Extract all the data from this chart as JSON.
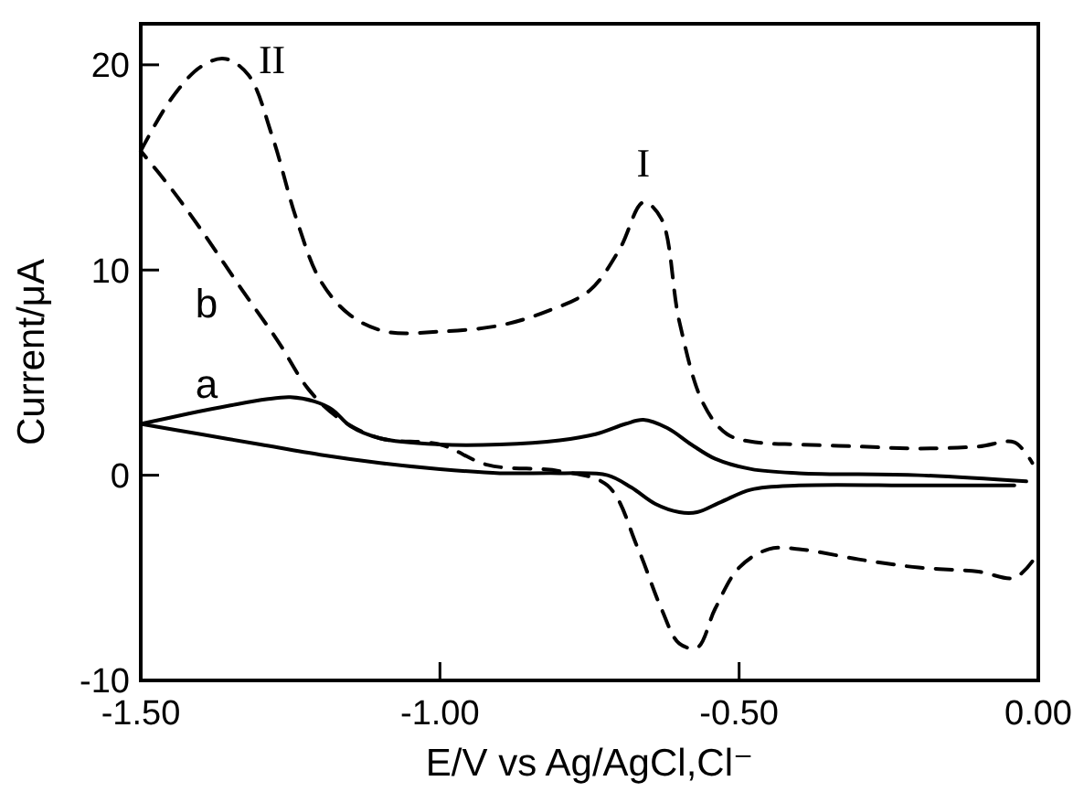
{
  "chart_data": {
    "type": "line",
    "xlabel": "E/V vs Ag/AgCl,Cl⁻",
    "ylabel": "Current/μA",
    "xlim": [
      -1.5,
      0
    ],
    "ylim": [
      -10,
      22
    ],
    "xticks": [
      {
        "value": -1.5,
        "label": "-1.50"
      },
      {
        "value": -1,
        "label": "-1.00"
      },
      {
        "value": -0.5,
        "label": "-0.50"
      },
      {
        "value": 0,
        "label": "0.00"
      }
    ],
    "yticks": [
      -10,
      0,
      10,
      20
    ],
    "grid": false,
    "marker": "none",
    "series": [
      {
        "color": "#000000",
        "line_style": "solid",
        "x": [
          -1.5,
          -1.42,
          -1.35,
          -1.29,
          -1.25,
          -1.21,
          -1.18,
          -1.15,
          -1.1,
          -1.0,
          -0.9,
          -0.8,
          -0.74,
          -0.69,
          -0.66,
          -0.62,
          -0.58,
          -0.54,
          -0.48,
          -0.4,
          -0.2,
          -0.02
        ],
        "values": [
          2.5,
          3.0,
          3.4,
          3.7,
          3.8,
          3.6,
          3.2,
          2.4,
          1.8,
          1.5,
          1.5,
          1.7,
          2.0,
          2.5,
          2.7,
          2.3,
          1.5,
          0.8,
          0.3,
          0.1,
          0.0,
          -0.3
        ]
      },
      {
        "color": "#000000",
        "line_style": "solid",
        "x": [
          -0.04,
          -0.2,
          -0.4,
          -0.48,
          -0.53,
          -0.57,
          -0.6,
          -0.64,
          -0.68,
          -0.72,
          -0.8,
          -0.9,
          -1.0,
          -1.1,
          -1.2,
          -1.3,
          -1.4,
          -1.5
        ],
        "values": [
          -0.5,
          -0.5,
          -0.5,
          -0.7,
          -1.3,
          -1.8,
          -1.8,
          -1.4,
          -0.6,
          0.0,
          0.1,
          0.1,
          0.3,
          0.6,
          1.0,
          1.5,
          2.0,
          2.5
        ]
      },
      {
        "color": "#000000",
        "line_style": "dashed",
        "x": [
          -1.5,
          -1.45,
          -1.4,
          -1.36,
          -1.32,
          -1.28,
          -1.24,
          -1.2,
          -1.15,
          -1.09,
          -1.0,
          -0.9,
          -0.82,
          -0.75,
          -0.7,
          -0.66,
          -0.63,
          -0.6,
          -0.56,
          -0.52,
          -0.47,
          -0.4,
          -0.3,
          -0.2,
          -0.1,
          -0.04,
          -0.01
        ],
        "values": [
          15.8,
          18.3,
          19.9,
          20.3,
          19.5,
          16.5,
          12.5,
          9.5,
          7.8,
          7.0,
          7.0,
          7.3,
          8.0,
          9.0,
          11.0,
          13.3,
          12.5,
          7.5,
          3.5,
          2.0,
          1.6,
          1.5,
          1.4,
          1.3,
          1.4,
          1.6,
          0.6
        ]
      },
      {
        "color": "#000000",
        "line_style": "dashed",
        "x": [
          -0.01,
          -0.04,
          -0.1,
          -0.2,
          -0.3,
          -0.4,
          -0.45,
          -0.5,
          -0.54,
          -0.57,
          -0.6,
          -0.63,
          -0.67,
          -0.72,
          -0.8,
          -0.92,
          -1.0,
          -1.1,
          -1.17,
          -1.22,
          -1.27,
          -1.33,
          -1.4,
          -1.45,
          -1.5
        ],
        "values": [
          -4.2,
          -5.0,
          -4.7,
          -4.5,
          -4.1,
          -3.6,
          -3.6,
          -4.5,
          -6.5,
          -8.4,
          -8.2,
          -6.5,
          -3.5,
          -0.5,
          0.2,
          0.5,
          1.5,
          1.8,
          2.8,
          4.2,
          6.5,
          9.0,
          12.0,
          14.0,
          15.8
        ]
      }
    ],
    "annotations": [
      "a",
      "b",
      {
        "text": "II",
        "x": -1.36,
        "y": 20.3
      },
      {
        "text": "I",
        "x": -0.66,
        "y": 13.3
      }
    ]
  }
}
